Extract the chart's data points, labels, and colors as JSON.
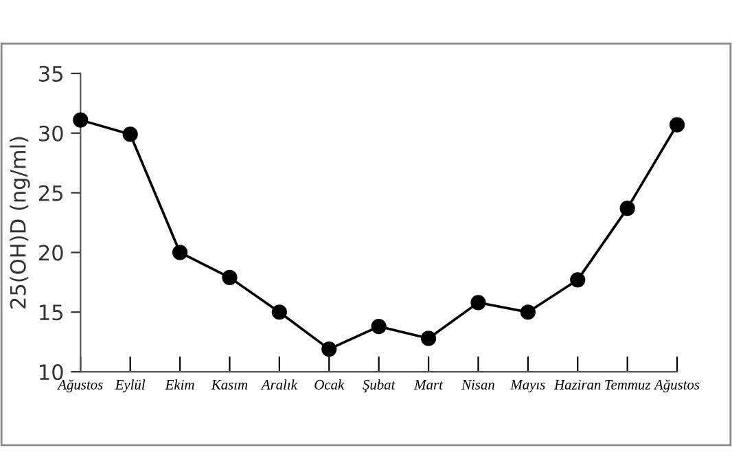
{
  "chart_data": {
    "type": "line",
    "ylabel": "25(OH)D (ng/ml)",
    "categories": [
      "Ağustos",
      "Eylül",
      "Ekim",
      "Kasım",
      "Aralık",
      "Ocak",
      "Şubat",
      "Mart",
      "Nisan",
      "Mayıs",
      "Haziran",
      "Temmuz",
      "Ağustos"
    ],
    "series": [
      {
        "color": "#000000",
        "values": [
          31.1,
          29.9,
          20.0,
          17.9,
          15.0,
          11.9,
          13.8,
          12.8,
          15.8,
          15.0,
          17.7,
          23.7,
          30.7
        ]
      }
    ],
    "ylim": [
      10,
      35
    ],
    "yticks": [
      10,
      15,
      20,
      25,
      30,
      35
    ],
    "grid": false,
    "legend": false,
    "marker": "circle",
    "line_style": "solid"
  }
}
